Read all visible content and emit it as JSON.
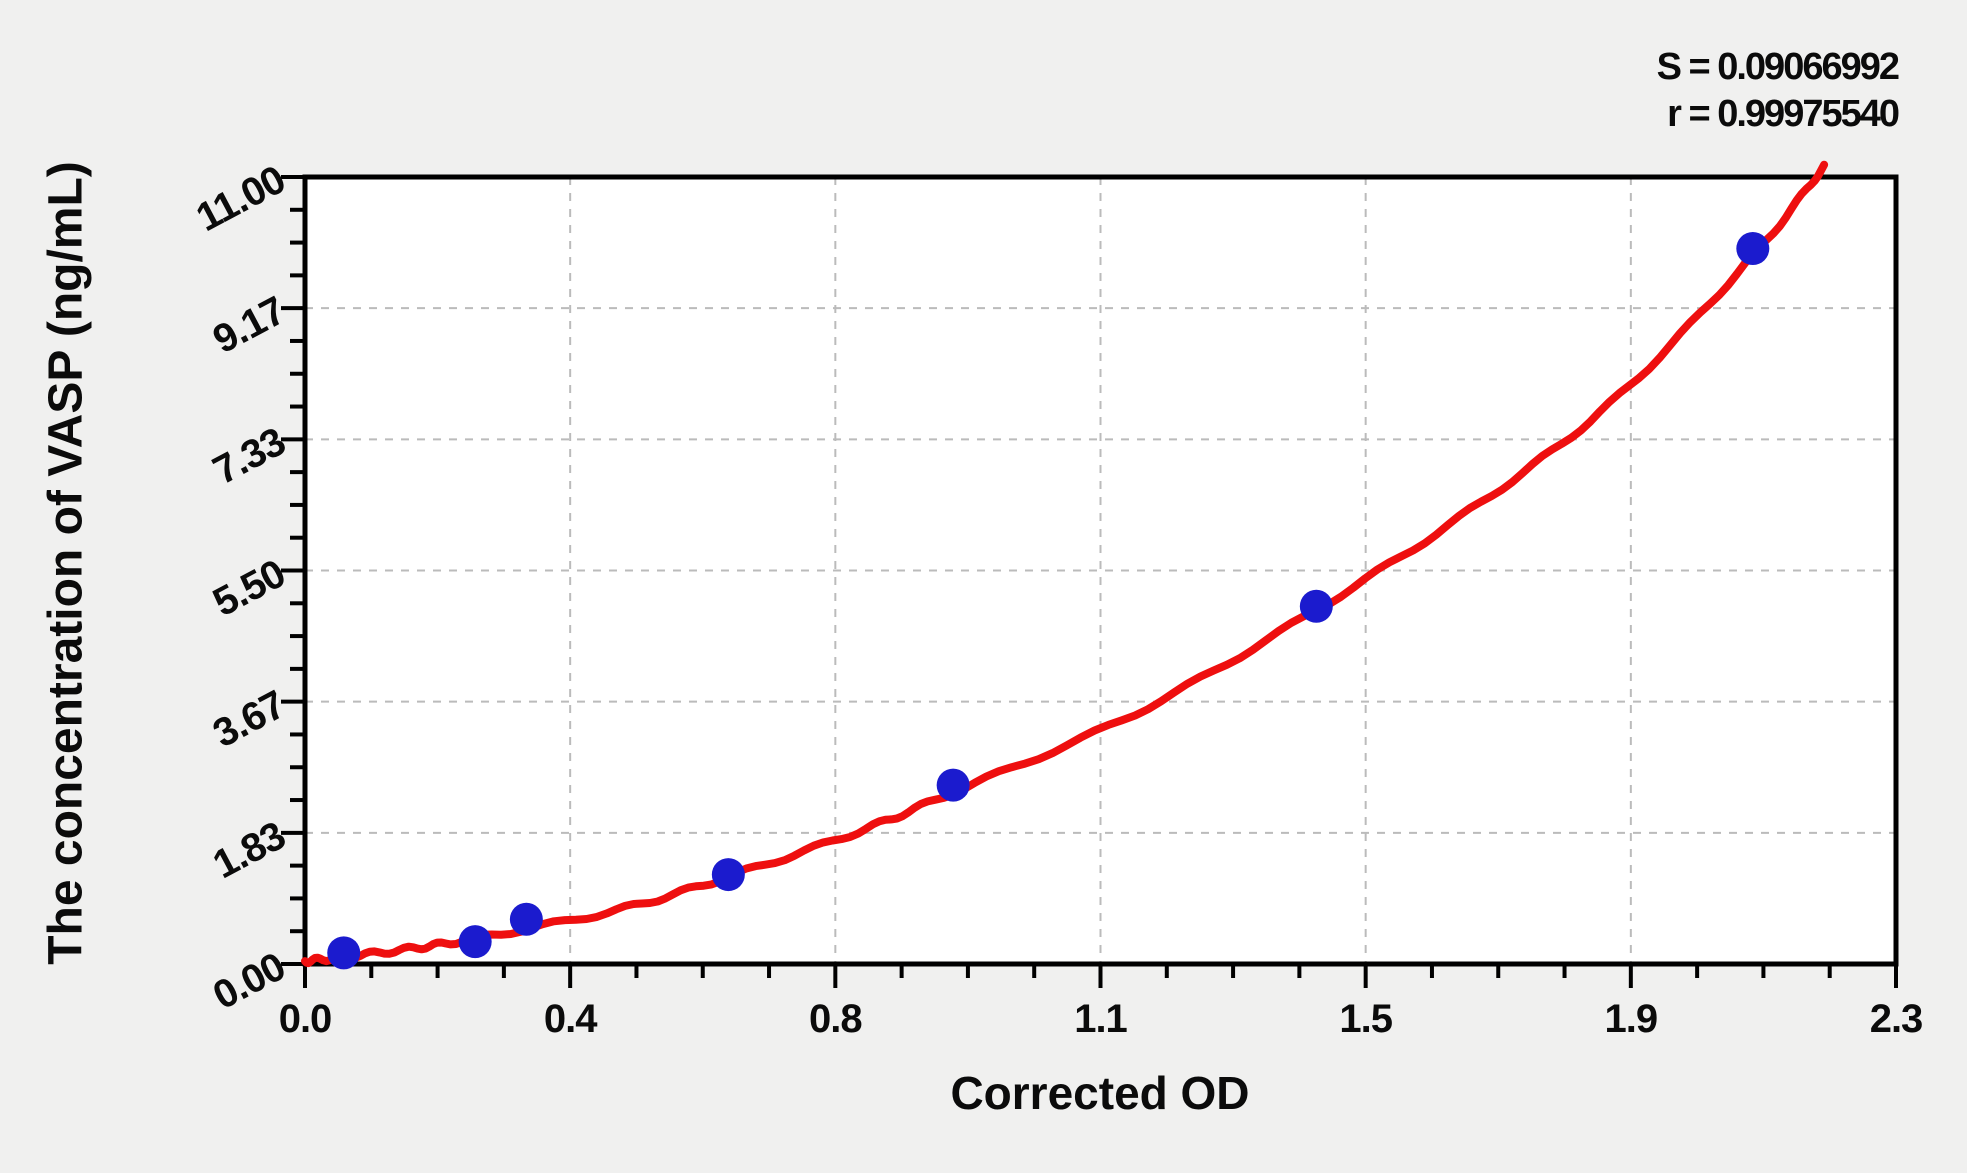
{
  "stats": {
    "s_line": "S = 0.09066992",
    "r_line": "r = 0.99975540"
  },
  "chart_data": {
    "type": "scatter",
    "title": "",
    "xlabel": "Corrected OD",
    "ylabel": "The concentration of VASP (ng/mL)",
    "xlim": [
      0,
      2.3
    ],
    "ylim": [
      0,
      11
    ],
    "x_tick_labels": [
      "0.0",
      "0.4",
      "0.8",
      "1.1",
      "1.5",
      "1.9",
      "2.3"
    ],
    "y_tick_labels": [
      "0.00",
      "1.83",
      "3.67",
      "5.50",
      "7.33",
      "9.17",
      "11.00"
    ],
    "minor_divisions_per_major": 4,
    "grid": "dashed gray lines at major ticks, full plot frame box",
    "legend_position": "none",
    "series": [
      {
        "name": "standard-points",
        "type": "scatter",
        "marker": "filled-circle",
        "points_od_conc": [
          [
            0.056,
            0.156
          ],
          [
            0.246,
            0.312
          ],
          [
            0.32,
            0.625
          ],
          [
            0.612,
            1.25
          ],
          [
            0.937,
            2.5
          ],
          [
            1.462,
            5.0
          ],
          [
            2.093,
            10.0
          ]
        ]
      },
      {
        "name": "fitted-curve",
        "type": "line",
        "points_od_conc": [
          [
            0.0,
            0.04
          ],
          [
            0.056,
            0.1
          ],
          [
            0.15,
            0.21
          ],
          [
            0.246,
            0.36
          ],
          [
            0.45,
            0.75
          ],
          [
            0.612,
            1.22
          ],
          [
            0.8,
            1.85
          ],
          [
            0.937,
            2.4
          ],
          [
            1.2,
            3.5
          ],
          [
            1.462,
            4.95
          ],
          [
            1.7,
            6.45
          ],
          [
            1.9,
            7.95
          ],
          [
            2.093,
            9.9
          ],
          [
            2.196,
            11.15
          ]
        ]
      }
    ],
    "fit_statistics": {
      "S": 0.09066992,
      "r": 0.9997554
    }
  },
  "colors": {
    "curve": "#ee0f0f",
    "points": "#1b1bce",
    "grid": "#bbbbbb",
    "frame": "#000000",
    "plot_background": "#ffffff",
    "page_background": "#f0f0ef",
    "text": "#0b0b0b"
  }
}
